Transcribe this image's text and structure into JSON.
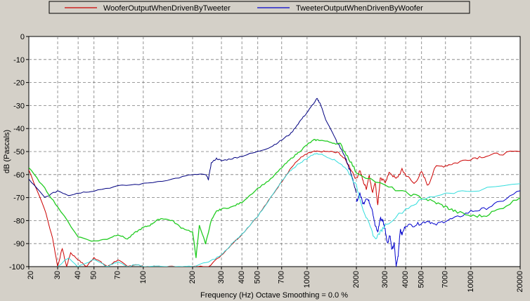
{
  "chart_data": {
    "type": "line",
    "xlabel": "Frequency (Hz) Octave Smoothing = 0.0 %",
    "ylabel": "dB (Pascals)",
    "xscale": "log",
    "xlim": [
      20,
      20000
    ],
    "ylim": [
      -100,
      0
    ],
    "grid": true,
    "legend_placement": "top",
    "x_ticks": [
      20,
      30,
      40,
      50,
      70,
      100,
      200,
      300,
      400,
      500,
      700,
      1000,
      2000,
      3000,
      4000,
      5000,
      7000,
      10000,
      20000
    ],
    "x_tick_labels": [
      "20",
      "30",
      "40",
      "50",
      "70",
      "100",
      "200",
      "300",
      "400",
      "500",
      "700",
      "1000",
      "2000",
      "3000",
      "4000",
      "5000",
      "7000",
      "10000",
      "20000"
    ],
    "y_ticks": [
      0,
      -10,
      -20,
      -30,
      -40,
      -50,
      -60,
      -70,
      -80,
      -90,
      -100
    ],
    "y_tick_labels": [
      "0",
      "-10",
      "-20",
      "-30",
      "-40",
      "-50",
      "-60",
      "-70",
      "-80",
      "-90",
      "-100"
    ],
    "series": [
      {
        "name": "WooferOutputWhenDrivenByTweeter",
        "color": "#cc0000",
        "in_legend": true,
        "x": [
          20,
          25,
          28,
          30,
          32,
          34,
          36,
          40,
          45,
          50,
          55,
          60,
          70,
          80,
          90,
          100,
          120,
          150,
          200,
          250,
          300,
          350,
          400,
          500,
          600,
          700,
          800,
          900,
          1000,
          1100,
          1200,
          1400,
          1600,
          1800,
          2000,
          2100,
          2200,
          2300,
          2400,
          2500,
          2600,
          2700,
          2800,
          3000,
          3200,
          3500,
          3800,
          4000,
          4500,
          5000,
          5500,
          6000,
          7000,
          8000,
          10000,
          12000,
          15000,
          20000
        ],
        "y": [
          -58,
          -75,
          -88,
          -100,
          -92,
          -100,
          -94,
          -97,
          -100,
          -96,
          -98,
          -100,
          -97,
          -100,
          -99,
          -100,
          -100,
          -100,
          -100,
          -100,
          -95,
          -90,
          -86,
          -78,
          -70,
          -63,
          -57,
          -53,
          -51,
          -50,
          -50,
          -50,
          -51,
          -56,
          -62,
          -58,
          -63,
          -66,
          -60,
          -68,
          -63,
          -73,
          -62,
          -63,
          -59,
          -62,
          -58,
          -60,
          -64,
          -59,
          -65,
          -57,
          -56,
          -55,
          -53,
          -52,
          -51,
          -50
        ]
      },
      {
        "name": "TweeterOutputWhenDrivenByWoofer",
        "color": "#0000cc",
        "in_legend": true,
        "x": [
          2000,
          2100,
          2200,
          2300,
          2400,
          2500,
          2600,
          2700,
          2800,
          2900,
          3000,
          3100,
          3200,
          3300,
          3400,
          3500,
          3600,
          3700,
          3800,
          4000,
          4500,
          5000,
          5500,
          6000,
          7000,
          8000,
          10000,
          12000,
          15000,
          20000
        ],
        "y": [
          -72,
          -68,
          -73,
          -70,
          -72,
          -75,
          -82,
          -85,
          -79,
          -80,
          -84,
          -90,
          -86,
          -93,
          -90,
          -100,
          -95,
          -84,
          -86,
          -82,
          -82,
          -81,
          -80,
          -82,
          -80,
          -79,
          -76,
          -75,
          -72,
          -67
        ]
      },
      {
        "name": "",
        "color": "#000080",
        "in_legend": false,
        "x": [
          20,
          25,
          30,
          35,
          40,
          50,
          70,
          100,
          150,
          200,
          240,
          250,
          260,
          280,
          300,
          350,
          400,
          500,
          600,
          700,
          800,
          900,
          1000,
          1100,
          1150,
          1200,
          1300,
          1500,
          1700,
          1800,
          1900,
          2000
        ],
        "y": [
          -62,
          -70,
          -67,
          -69,
          -68,
          -67,
          -65,
          -64,
          -62,
          -60,
          -60,
          -62,
          -55,
          -53,
          -54,
          -53,
          -52,
          -50,
          -48,
          -45,
          -42,
          -37,
          -33,
          -29,
          -27,
          -29,
          -36,
          -45,
          -52,
          -57,
          -62,
          -68
        ]
      },
      {
        "name": "",
        "color": "#22cc22",
        "in_legend": false,
        "x": [
          20,
          25,
          30,
          40,
          50,
          60,
          70,
          80,
          90,
          100,
          110,
          120,
          130,
          150,
          170,
          200,
          210,
          220,
          240,
          260,
          280,
          300,
          350,
          400,
          500,
          600,
          700,
          800,
          900,
          1000,
          1100,
          1200,
          1400,
          1600,
          1800,
          2000,
          3000,
          4000,
          5000,
          6000,
          7000,
          8000,
          10000,
          12000,
          15000,
          20000
        ],
        "y": [
          -57,
          -66,
          -74,
          -87,
          -89,
          -88,
          -86,
          -88,
          -85,
          -83,
          -82,
          -80,
          -79,
          -80,
          -83,
          -85,
          -96,
          -82,
          -90,
          -80,
          -76,
          -75,
          -74,
          -72,
          -66,
          -62,
          -57,
          -53,
          -50,
          -47,
          -45,
          -45,
          -46,
          -47,
          -53,
          -59,
          -65,
          -68,
          -70,
          -72,
          -74,
          -76,
          -78,
          -78,
          -75,
          -70
        ]
      },
      {
        "name": "",
        "color": "#33dddd",
        "in_legend": false,
        "x": [
          30,
          35,
          40,
          50,
          60,
          70,
          80,
          90,
          100,
          150,
          200,
          250,
          300,
          350,
          400,
          500,
          600,
          700,
          800,
          900,
          1000,
          1100,
          1200,
          1400,
          1600,
          1800,
          2000,
          2200,
          2400,
          2600,
          2800,
          3000,
          4000,
          5000,
          7000,
          10000,
          20000
        ],
        "y": [
          -100,
          -96,
          -100,
          -97,
          -100,
          -98,
          -100,
          -99,
          -100,
          -100,
          -100,
          -98,
          -95,
          -90,
          -86,
          -78,
          -70,
          -63,
          -58,
          -55,
          -53,
          -51,
          -51,
          -53,
          -55,
          -59,
          -65,
          -75,
          -82,
          -88,
          -85,
          -82,
          -75,
          -71,
          -68,
          -67,
          -64
        ]
      }
    ]
  }
}
